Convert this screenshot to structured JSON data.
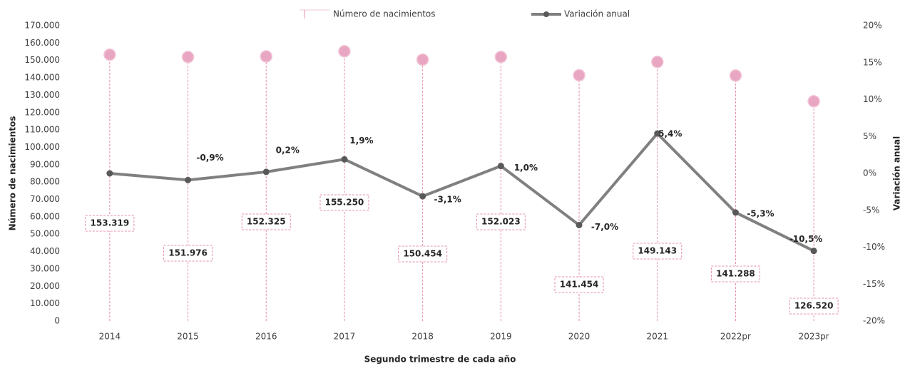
{
  "chart_data": {
    "type": "lollipop-line",
    "categories": [
      "2014",
      "2015",
      "2016",
      "2017",
      "2018",
      "2019",
      "2020",
      "2021",
      "2022pr",
      "2023pr"
    ],
    "series": [
      {
        "name": "Número de nacimientos",
        "color": "#e58fb0",
        "values": [
          153319,
          151976,
          152325,
          155250,
          150454,
          152023,
          141454,
          149143,
          141288,
          126520
        ],
        "value_labels": [
          "153.319",
          "151.976",
          "152.325",
          "155.250",
          "150.454",
          "152.023",
          "141.454",
          "149.143",
          "141.288",
          "126.520"
        ]
      },
      {
        "name": "Variación anual",
        "color": "#808080",
        "axis": "y2",
        "values": [
          0,
          -0.9,
          0.2,
          1.9,
          -3.1,
          1.0,
          -7.0,
          5.4,
          -5.3,
          -10.5
        ],
        "value_labels": [
          null,
          "-0,9%",
          "0,2%",
          "1,9%",
          "-3,1%",
          "1,0%",
          "-7,0%",
          "5,4%",
          "-5,3%",
          "-10,5%"
        ]
      }
    ],
    "ylabel": "Número de nacimientos",
    "y2label": "Variación anual",
    "xlabel": "Segundo trimestre de cada año",
    "ylim": [
      0,
      170000
    ],
    "yticks": [
      0,
      {
        "value": 10000,
        "label": "10.000"
      },
      {
        "value": 20000,
        "label": "20.000"
      },
      {
        "value": 30000,
        "label": "30.000"
      },
      {
        "value": 40000,
        "label": "40.000"
      },
      {
        "value": 50000,
        "label": "50.000"
      },
      {
        "value": 60000,
        "label": "60.000"
      },
      {
        "value": 70000,
        "label": "70.000"
      },
      {
        "value": 80000,
        "label": "80.000"
      },
      {
        "value": 90000,
        "label": "90.000"
      },
      {
        "value": 100000,
        "label": "100.000"
      },
      {
        "value": 110000,
        "label": "110.000"
      },
      {
        "value": 120000,
        "label": "120.000"
      },
      {
        "value": 130000,
        "label": "130.000"
      },
      {
        "value": 140000,
        "label": "140.000"
      },
      {
        "value": 150000,
        "label": "150.000"
      },
      {
        "value": 160000,
        "label": "160.000"
      },
      {
        "value": 170000,
        "label": "170.000"
      }
    ],
    "y2lim": [
      -20,
      20
    ],
    "y2ticks": [
      {
        "value": -20,
        "label": "-20%"
      },
      {
        "value": -15,
        "label": "-15%"
      },
      {
        "value": -10,
        "label": "-10%"
      },
      {
        "value": -5,
        "label": "-5%"
      },
      {
        "value": 0,
        "label": "0%"
      },
      {
        "value": 5,
        "label": "5%"
      },
      {
        "value": 10,
        "label": "10%"
      },
      {
        "value": 15,
        "label": "15%"
      },
      {
        "value": 20,
        "label": "20%"
      }
    ],
    "grid": false,
    "legend": "top"
  }
}
